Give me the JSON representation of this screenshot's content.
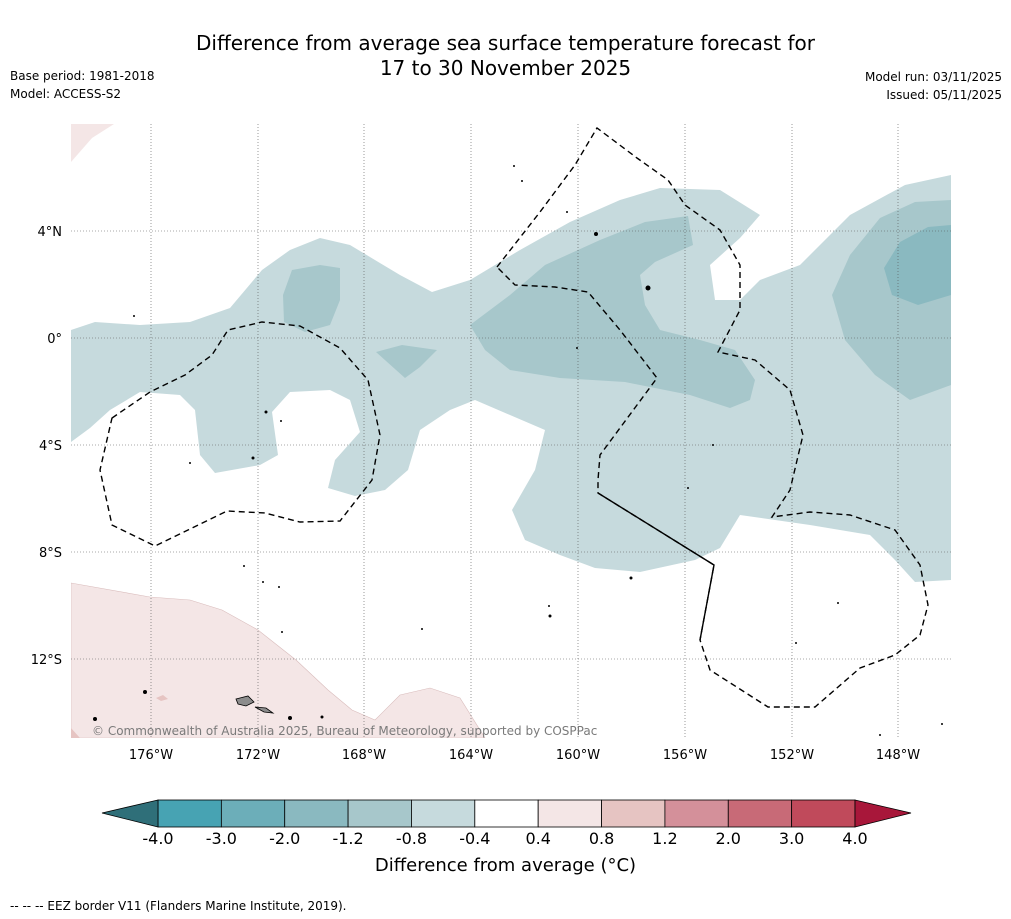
{
  "header": {
    "title_line1": "Difference from average sea surface temperature forecast for",
    "title_line2": "17 to 30 November 2025",
    "base_period": "Base period: 1981-2018",
    "model": "Model: ACCESS-S2",
    "model_run": "Model run: 03/11/2025",
    "issued": "Issued: 05/11/2025"
  },
  "map": {
    "lat_labels": [
      "4°N",
      "0°",
      "4°S",
      "8°S",
      "12°S"
    ],
    "lon_labels": [
      "176°W",
      "172°W",
      "168°W",
      "164°W",
      "160°W",
      "156°W",
      "152°W",
      "148°W"
    ],
    "copyright": "© Commonwealth of Australia 2025, Bureau of Meteorology, supported by COSPPac",
    "colors": {
      "ocean": "#ffffff",
      "light_teal": "#c6dadd",
      "mid_teal": "#a7c7cb",
      "dark_teal": "#8ab9c0",
      "light_pink": "#f4e6e6",
      "land": "#8c8c8c"
    }
  },
  "colorbar": {
    "ticks": [
      "-4.0",
      "-3.0",
      "-2.0",
      "-1.2",
      "-0.8",
      "-0.4",
      "0.4",
      "0.8",
      "1.2",
      "2.0",
      "3.0",
      "4.0"
    ],
    "colors": [
      "#47a3b3",
      "#6caeb9",
      "#8ab9c0",
      "#a7c7cb",
      "#c6dadd",
      "#ffffff",
      "#f4e6e6",
      "#e6c4c2",
      "#d4909a",
      "#c86a77",
      "#c04a5b"
    ],
    "under_color": "#2f6f79",
    "over_color": "#a8173a",
    "label": "Difference from average (°C)"
  },
  "footnote": "--  --  -- EEZ border V11 (Flanders Marine Institute, 2019)."
}
